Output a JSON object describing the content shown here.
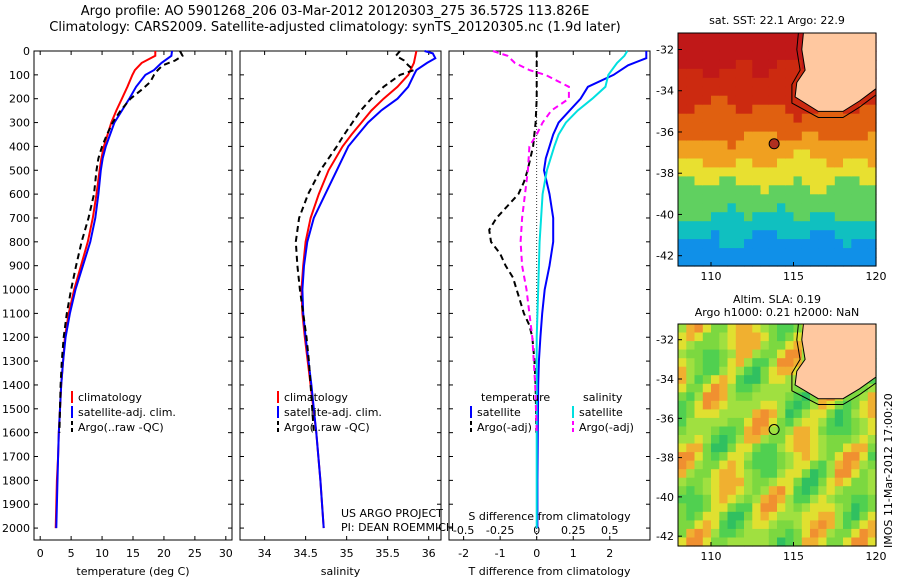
{
  "header": {
    "line1": "Argo profile: AO 5901268_206 03-Mar-2012 20120303_275 36.572S 113.826E",
    "line2": "Climatology: CARS2009. Satellite-adjusted climatology: synTS_20120305.nc (1.9d later)"
  },
  "colors": {
    "climatology": "#ff0000",
    "satellite": "#0000ff",
    "argo": "#000000",
    "sal_diff_satellite": "#00e0e0",
    "sal_diff_argo": "#ff00ff"
  },
  "chart_data": [
    {
      "type": "line",
      "xlabel": "temperature (deg C)",
      "xlim": [
        -1,
        31
      ],
      "ylim": [
        0,
        2050
      ],
      "xticks": [
        0,
        5,
        10,
        15,
        20,
        25,
        30
      ],
      "yticks": [
        0,
        100,
        200,
        300,
        400,
        500,
        600,
        700,
        800,
        900,
        1000,
        1100,
        1200,
        1300,
        1400,
        1500,
        1600,
        1700,
        1800,
        1900,
        2000
      ],
      "legend": [
        "climatology",
        "satellite-adj. clim.",
        "Argo(..raw -QC)"
      ],
      "legend_location": "lower-center",
      "series": [
        {
          "name": "climatology",
          "style": "solid",
          "color": "#ff0000",
          "depth": [
            0,
            20,
            50,
            80,
            100,
            150,
            200,
            250,
            300,
            350,
            400,
            450,
            500,
            600,
            700,
            800,
            900,
            1000,
            1100,
            1200,
            1300,
            1400,
            1500,
            1600,
            1700,
            1800,
            1900,
            2000
          ],
          "values": [
            18.6,
            18.6,
            16.4,
            15.3,
            14.9,
            14.1,
            13.2,
            12.3,
            11.5,
            10.9,
            10.3,
            9.9,
            9.6,
            9.1,
            8.5,
            7.7,
            6.6,
            5.5,
            4.6,
            4.0,
            3.7,
            3.4,
            3.2,
            3.0,
            2.9,
            2.7,
            2.6,
            2.5
          ]
        },
        {
          "name": "satellite-adj. clim.",
          "style": "solid",
          "color": "#0000ff",
          "depth": [
            0,
            20,
            50,
            80,
            100,
            150,
            200,
            250,
            300,
            350,
            400,
            450,
            500,
            600,
            700,
            800,
            900,
            1000,
            1100,
            1200,
            1300,
            1400,
            1500,
            1600,
            1700,
            1800,
            1900,
            2000
          ],
          "values": [
            21.3,
            21.2,
            19.6,
            18.4,
            17.0,
            15.5,
            14.4,
            13.2,
            12.0,
            11.3,
            10.6,
            10.1,
            9.8,
            9.4,
            8.9,
            8.1,
            6.9,
            5.7,
            4.8,
            4.1,
            3.7,
            3.4,
            3.2,
            3.0,
            2.9,
            2.8,
            2.7,
            2.6
          ]
        },
        {
          "name": "Argo(..raw -QC)",
          "style": "dashed",
          "color": "#000000",
          "depth": [
            0,
            20,
            40,
            60,
            80,
            100,
            130,
            160,
            200,
            250,
            300,
            350,
            400,
            450,
            500,
            600,
            700,
            800,
            900,
            1000,
            1100,
            1200,
            1300,
            1400,
            1500,
            1600
          ],
          "values": [
            22.6,
            23.0,
            21.8,
            19.8,
            19.0,
            18.4,
            17.8,
            16.5,
            14.6,
            13.0,
            11.7,
            10.8,
            10.0,
            9.4,
            9.1,
            8.7,
            7.8,
            6.7,
            5.8,
            5.0,
            4.3,
            3.8,
            3.5,
            3.3,
            3.2,
            3.1
          ]
        }
      ],
      "annotations": []
    },
    {
      "type": "line",
      "xlabel": "salinity",
      "xlim": [
        33.7,
        36.15
      ],
      "ylim": [
        0,
        2050
      ],
      "xticks": [
        34,
        34.5,
        35,
        35.5,
        36
      ],
      "legend": [
        "climatology",
        "satellite-adj. clim.",
        "Argo(..raw -QC)"
      ],
      "legend_location": "lower-center",
      "series": [
        {
          "name": "climatology",
          "style": "solid",
          "color": "#ff0000",
          "depth": [
            0,
            50,
            100,
            150,
            200,
            250,
            300,
            350,
            400,
            500,
            600,
            700,
            800,
            900,
            1000,
            1100,
            1200,
            1400,
            1600,
            1800,
            2000
          ],
          "values": [
            35.85,
            35.82,
            35.75,
            35.62,
            35.45,
            35.3,
            35.18,
            35.06,
            34.95,
            34.78,
            34.66,
            34.56,
            34.5,
            34.47,
            34.45,
            34.46,
            34.49,
            34.56,
            34.63,
            34.68,
            34.72
          ]
        },
        {
          "name": "satellite-adj. clim.",
          "style": "solid",
          "color": "#0000ff",
          "depth": [
            0,
            10,
            30,
            50,
            80,
            100,
            150,
            200,
            250,
            300,
            350,
            400,
            500,
            600,
            700,
            800,
            900,
            1000,
            1100,
            1200,
            1400,
            1600,
            1800,
            2000
          ],
          "values": [
            35.95,
            36.05,
            36.08,
            35.98,
            35.85,
            35.82,
            35.75,
            35.62,
            35.42,
            35.26,
            35.14,
            35.02,
            34.88,
            34.74,
            34.6,
            34.52,
            34.48,
            34.46,
            34.47,
            34.5,
            34.57,
            34.63,
            34.68,
            34.72
          ]
        },
        {
          "name": "Argo(..raw -QC)",
          "style": "dashed",
          "color": "#000000",
          "depth": [
            0,
            20,
            40,
            60,
            80,
            100,
            150,
            200,
            250,
            300,
            350,
            400,
            500,
            600,
            700,
            800,
            900,
            1000,
            1100,
            1200,
            1300,
            1400,
            1500,
            1600
          ],
          "values": [
            35.65,
            35.6,
            35.7,
            35.75,
            35.82,
            35.65,
            35.45,
            35.3,
            35.17,
            35.07,
            34.97,
            34.88,
            34.68,
            34.53,
            34.42,
            34.38,
            34.4,
            34.43,
            34.47,
            34.51,
            34.54,
            34.56,
            34.58,
            34.6
          ]
        }
      ],
      "annotations": [
        "US ARGO PROJECT",
        "PI: DEAN ROEMMICH"
      ]
    },
    {
      "type": "line",
      "xlabel": "T difference from climatology",
      "xlabel_top": "S difference from climatology",
      "xlim": [
        -2.4,
        3.1
      ],
      "ylim": [
        0,
        2050
      ],
      "xticks": [
        -2,
        -1,
        0,
        1,
        2
      ],
      "xticks_salinity": [
        -0.5,
        -0.25,
        0,
        0.25,
        0.5
      ],
      "legend_temperature_title": "temperature",
      "legend_salinity_title": "salinity",
      "legend_temperature": [
        "satellite",
        "Argo(-adj)"
      ],
      "legend_salinity": [
        "satellite",
        "Argo(-adj)"
      ],
      "series": [
        {
          "name": "temperature satellite",
          "style": "solid",
          "color": "#0000ff",
          "depth": [
            0,
            30,
            60,
            100,
            150,
            200,
            250,
            300,
            350,
            400,
            450,
            500,
            600,
            700,
            800,
            900,
            1000,
            1100,
            1200,
            1300,
            1400,
            1600,
            1800,
            2000
          ],
          "values": [
            3.0,
            3.0,
            2.5,
            2.1,
            1.4,
            1.2,
            0.9,
            0.6,
            0.45,
            0.35,
            0.25,
            0.2,
            0.35,
            0.45,
            0.45,
            0.35,
            0.22,
            0.15,
            0.1,
            0.06,
            0.04,
            0.03,
            0.02,
            0.02
          ]
        },
        {
          "name": "temperature Argo(-adj)",
          "style": "dashed",
          "color": "#000000",
          "depth": [
            0,
            100,
            200,
            300,
            400,
            500,
            550,
            600,
            650,
            700,
            750,
            800,
            850,
            900,
            950,
            1000,
            1050,
            1100,
            1150,
            1200,
            1300,
            1400,
            1500,
            1600
          ],
          "values": [
            0.0,
            0.0,
            0.0,
            -0.03,
            -0.1,
            -0.25,
            -0.35,
            -0.5,
            -0.8,
            -1.1,
            -1.3,
            -1.25,
            -1.0,
            -0.85,
            -0.65,
            -0.55,
            -0.45,
            -0.35,
            -0.2,
            -0.12,
            -0.06,
            -0.03,
            -0.02,
            -0.01
          ]
        },
        {
          "name": "salinity satellite",
          "style": "solid",
          "color": "#00e0e0",
          "depth": [
            0,
            20,
            50,
            100,
            150,
            200,
            250,
            300,
            350,
            400,
            500,
            600,
            800,
            1000,
            1200,
            1500,
            1800,
            2000
          ],
          "values": [
            0.62,
            0.6,
            0.55,
            0.49,
            0.47,
            0.38,
            0.28,
            0.2,
            0.15,
            0.12,
            0.07,
            0.04,
            0.02,
            0.01,
            0.0,
            0.0,
            0.0,
            0.0
          ]
        },
        {
          "name": "salinity Argo(-adj)",
          "style": "dashed",
          "color": "#ff00ff",
          "depth": [
            0,
            20,
            50,
            80,
            100,
            150,
            200,
            250,
            300,
            350,
            400,
            500,
            600,
            700,
            800,
            900,
            1000,
            1100,
            1200,
            1400,
            1600
          ],
          "values": [
            -0.3,
            -0.2,
            -0.15,
            -0.05,
            0.06,
            0.22,
            0.22,
            0.1,
            0.04,
            0.0,
            -0.05,
            -0.06,
            -0.08,
            -0.1,
            -0.11,
            -0.1,
            -0.07,
            -0.05,
            -0.03,
            -0.01,
            0.0
          ]
        }
      ],
      "annotations": []
    },
    {
      "type": "heatmap",
      "title": "sat. SST: 22.1  Argo: 22.9",
      "xlim": [
        108,
        120
      ],
      "ylim": [
        -42.5,
        -31.2
      ],
      "xticks": [
        110,
        115,
        120
      ],
      "yticks": [
        -32,
        -34,
        -36,
        -38,
        -40,
        -42
      ],
      "marker": {
        "lon": 113.826,
        "lat": -36.572
      }
    },
    {
      "type": "heatmap",
      "title": "Altim. SLA: 0.19",
      "subtitle": "Argo h1000: 0.21  h2000: NaN",
      "xlim": [
        108,
        120
      ],
      "ylim": [
        -42.5,
        -31.2
      ],
      "xticks": [
        110,
        115,
        120
      ],
      "yticks": [
        -32,
        -34,
        -36,
        -38,
        -40,
        -42
      ],
      "marker": {
        "lon": 113.826,
        "lat": -36.572
      }
    }
  ],
  "side_text": "IMOS 11-Mar-2012 17:00:20"
}
